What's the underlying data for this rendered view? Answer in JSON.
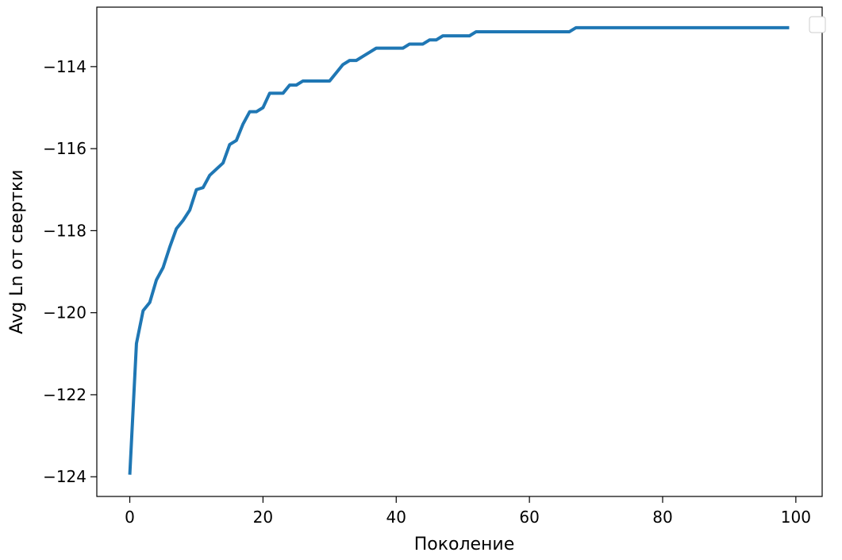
{
  "chart_data": {
    "type": "line",
    "title": "",
    "xlabel": "Поколение",
    "ylabel": "Avg Ln от свертки",
    "xlim": [
      -4.95,
      103.95
    ],
    "ylim": [
      -124.48,
      -112.55
    ],
    "xticks": [
      0,
      20,
      40,
      60,
      80,
      100
    ],
    "yticks": [
      -124,
      -122,
      -120,
      -118,
      -116,
      -114
    ],
    "xtick_labels": [
      "0",
      "20",
      "40",
      "60",
      "80",
      "100"
    ],
    "ytick_labels": [
      "−124",
      "−122",
      "−120",
      "−118",
      "−116",
      "−114"
    ],
    "grid": false,
    "legend": "top-right (empty)",
    "series": [
      {
        "color": "#1f77b4",
        "x": [
          0,
          1,
          2,
          3,
          4,
          5,
          6,
          7,
          8,
          9,
          10,
          11,
          12,
          13,
          14,
          15,
          16,
          17,
          18,
          19,
          20,
          21,
          22,
          23,
          24,
          25,
          26,
          27,
          28,
          29,
          30,
          31,
          32,
          33,
          34,
          35,
          36,
          37,
          38,
          39,
          40,
          41,
          42,
          43,
          44,
          45,
          46,
          47,
          48,
          49,
          50,
          51,
          52,
          53,
          54,
          55,
          56,
          57,
          58,
          59,
          60,
          61,
          62,
          63,
          64,
          65,
          66,
          67,
          68,
          69,
          70,
          71,
          72,
          73,
          74,
          75,
          76,
          77,
          78,
          79,
          80,
          81,
          82,
          83,
          84,
          85,
          86,
          87,
          88,
          89,
          90,
          91,
          92,
          93,
          94,
          95,
          96,
          97,
          98,
          99
        ],
        "values": [
          -123.95,
          -120.75,
          -119.95,
          -119.75,
          -119.2,
          -118.9,
          -118.4,
          -117.95,
          -117.75,
          -117.5,
          -117.0,
          -116.95,
          -116.65,
          -116.5,
          -116.35,
          -115.9,
          -115.8,
          -115.4,
          -115.1,
          -115.1,
          -115.0,
          -114.65,
          -114.65,
          -114.65,
          -114.45,
          -114.45,
          -114.35,
          -114.35,
          -114.35,
          -114.35,
          -114.35,
          -114.15,
          -113.95,
          -113.85,
          -113.85,
          -113.75,
          -113.65,
          -113.55,
          -113.55,
          -113.55,
          -113.55,
          -113.55,
          -113.45,
          -113.45,
          -113.45,
          -113.35,
          -113.35,
          -113.25,
          -113.25,
          -113.25,
          -113.25,
          -113.25,
          -113.15,
          -113.15,
          -113.15,
          -113.15,
          -113.15,
          -113.15,
          -113.15,
          -113.15,
          -113.15,
          -113.15,
          -113.15,
          -113.15,
          -113.15,
          -113.15,
          -113.15,
          -113.05,
          -113.05,
          -113.05,
          -113.05,
          -113.05,
          -113.05,
          -113.05,
          -113.05,
          -113.05,
          -113.05,
          -113.05,
          -113.05,
          -113.05,
          -113.05,
          -113.05,
          -113.05,
          -113.05,
          -113.05,
          -113.05,
          -113.05,
          -113.05,
          -113.05,
          -113.05,
          -113.05,
          -113.05,
          -113.05,
          -113.05,
          -113.05,
          -113.05,
          -113.05,
          -113.05,
          -113.05,
          -113.05
        ]
      }
    ]
  }
}
